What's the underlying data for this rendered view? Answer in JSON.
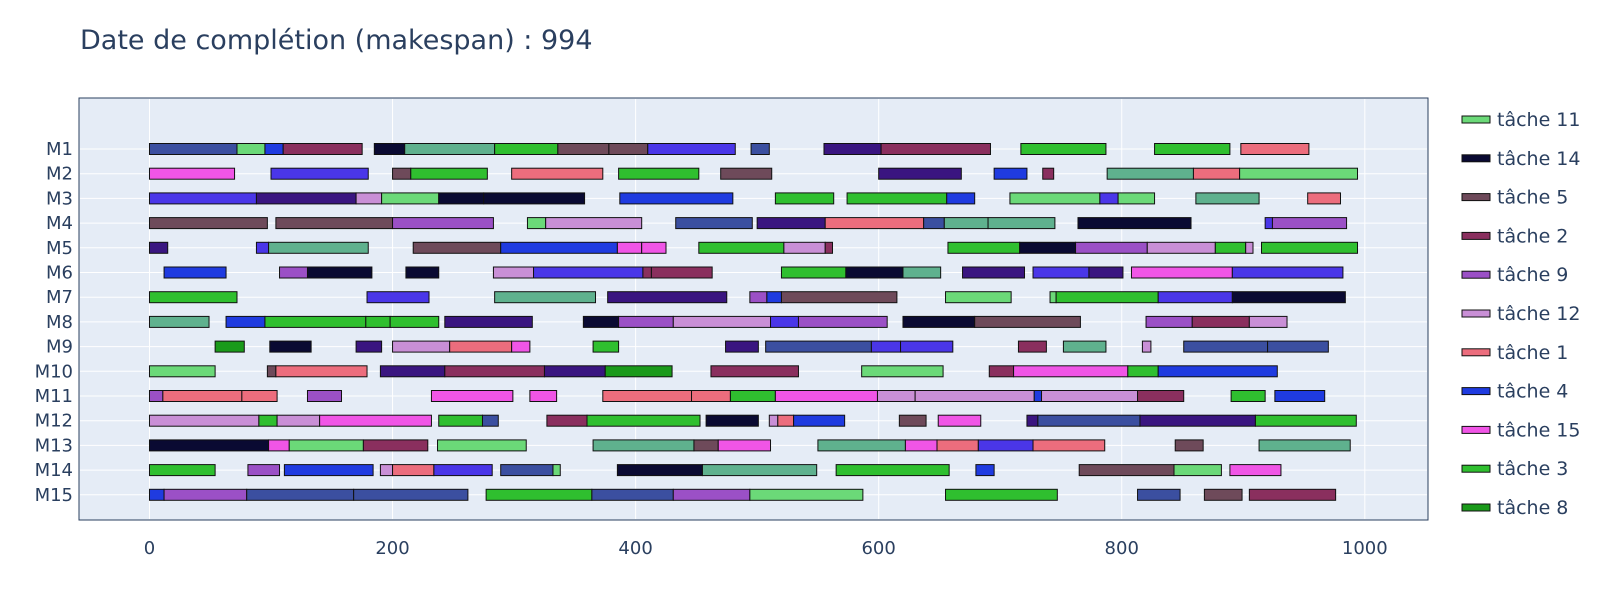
{
  "chart_data": {
    "type": "gantt",
    "title": "Date de complétion (makespan) : 994",
    "xlabel": "",
    "ylabel": "",
    "xlim": [
      -58,
      1052
    ],
    "x_ticks": [
      0,
      200,
      400,
      600,
      800,
      1000
    ],
    "grid": true,
    "legend_position": "right",
    "machines": [
      "M1",
      "M2",
      "M3",
      "M4",
      "M5",
      "M6",
      "M7",
      "M8",
      "M9",
      "M10",
      "M11",
      "M12",
      "M13",
      "M14",
      "M15"
    ],
    "legend": [
      {
        "name": "tâche 11",
        "color": "#6bd978"
      },
      {
        "name": "tâche 14",
        "color": "#0a0a32"
      },
      {
        "name": "tâche 5",
        "color": "#6e4a5a"
      },
      {
        "name": "tâche 2",
        "color": "#8a2f5e"
      },
      {
        "name": "tâche 9",
        "color": "#9b50c6"
      },
      {
        "name": "tâche 12",
        "color": "#c98fd6"
      },
      {
        "name": "tâche 1",
        "color": "#ec6d7d"
      },
      {
        "name": "tâche 4",
        "color": "#1f3be0"
      },
      {
        "name": "tâche 15",
        "color": "#f055e6"
      },
      {
        "name": "tâche 3",
        "color": "#2fbf2f"
      },
      {
        "name": "tâche 8",
        "color": "#1a9a1a"
      }
    ],
    "task_colors": {
      "j1": "#ec6d7d",
      "j2": "#8a2f5e",
      "j3": "#2fbf2f",
      "j4": "#1f3be0",
      "j5": "#6e4a5a",
      "j6": "#5fb18e",
      "j7": "#3b4fa0",
      "j8": "#1a9a1a",
      "j9": "#9b50c6",
      "j10": "#3a1580",
      "j11": "#6bd978",
      "j12": "#c98fd6",
      "j13": "#4a36e8",
      "j14": "#0a0a32",
      "j15": "#f055e6"
    },
    "bars": [
      [
        [
          "j7",
          0,
          72
        ],
        [
          "j11",
          72,
          95
        ],
        [
          "j4",
          95,
          110
        ],
        [
          "j2",
          110,
          175
        ],
        [
          "j14",
          185,
          210
        ],
        [
          "j6",
          210,
          284
        ],
        [
          "j3",
          284,
          336
        ],
        [
          "j5",
          336,
          378
        ],
        [
          "j5",
          378,
          410
        ],
        [
          "j13",
          410,
          482
        ],
        [
          "j7",
          495,
          510
        ],
        [
          "j10",
          555,
          602
        ],
        [
          "j2",
          602,
          692
        ],
        [
          "j3",
          717,
          787
        ],
        [
          "j3",
          827,
          889
        ],
        [
          "j1",
          898,
          954
        ]
      ],
      [
        [
          "j15",
          0,
          70
        ],
        [
          "j13",
          100,
          180
        ],
        [
          "j5",
          200,
          215
        ],
        [
          "j3",
          215,
          278
        ],
        [
          "j1",
          298,
          373
        ],
        [
          "j3",
          386,
          452
        ],
        [
          "j5",
          470,
          512
        ],
        [
          "j10",
          600,
          668
        ],
        [
          "j4",
          695,
          722
        ],
        [
          "j2",
          735,
          744
        ],
        [
          "j6",
          788,
          859
        ],
        [
          "j1",
          859,
          897
        ],
        [
          "j11",
          897,
          994
        ]
      ],
      [
        [
          "j13",
          0,
          88
        ],
        [
          "j10",
          88,
          170
        ],
        [
          "j12",
          170,
          191
        ],
        [
          "j11",
          191,
          238
        ],
        [
          "j14",
          238,
          275
        ],
        [
          "j14",
          275,
          358
        ],
        [
          "j4",
          387,
          480
        ],
        [
          "j3",
          515,
          563
        ],
        [
          "j3",
          574,
          656
        ],
        [
          "j4",
          656,
          679
        ],
        [
          "j11",
          708,
          782
        ],
        [
          "j13",
          782,
          797
        ],
        [
          "j11",
          797,
          827
        ],
        [
          "j6",
          861,
          913
        ],
        [
          "j1",
          953,
          980
        ]
      ],
      [
        [
          "j5",
          0,
          97
        ],
        [
          "j5",
          104,
          200
        ],
        [
          "j9",
          200,
          283
        ],
        [
          "j11",
          311,
          326
        ],
        [
          "j12",
          326,
          405
        ],
        [
          "j7",
          433,
          496
        ],
        [
          "j10",
          500,
          556
        ],
        [
          "j1",
          556,
          637
        ],
        [
          "j7",
          637,
          654
        ],
        [
          "j6",
          654,
          690
        ],
        [
          "j6",
          690,
          745
        ],
        [
          "j14",
          764,
          857
        ],
        [
          "j13",
          918,
          924
        ],
        [
          "j9",
          924,
          985
        ]
      ],
      [
        [
          "j10",
          0,
          15
        ],
        [
          "j13",
          88,
          98
        ],
        [
          "j6",
          98,
          180
        ],
        [
          "j5",
          217,
          289
        ],
        [
          "j4",
          289,
          385
        ],
        [
          "j15",
          385,
          405
        ],
        [
          "j15",
          405,
          425
        ],
        [
          "j3",
          452,
          522
        ],
        [
          "j12",
          522,
          556
        ],
        [
          "j2",
          556,
          562
        ],
        [
          "j3",
          657,
          716
        ],
        [
          "j14",
          716,
          762
        ],
        [
          "j9",
          762,
          821
        ],
        [
          "j12",
          821,
          877
        ],
        [
          "j3",
          877,
          902
        ],
        [
          "j12",
          902,
          908
        ],
        [
          "j3",
          915,
          994
        ]
      ],
      [
        [
          "j4",
          12,
          63
        ],
        [
          "j9",
          107,
          130
        ],
        [
          "j14",
          130,
          183
        ],
        [
          "j14",
          211,
          238
        ],
        [
          "j12",
          283,
          316
        ],
        [
          "j13",
          316,
          406
        ],
        [
          "j2",
          406,
          413
        ],
        [
          "j2",
          413,
          463
        ],
        [
          "j3",
          520,
          573
        ],
        [
          "j14",
          573,
          620
        ],
        [
          "j6",
          620,
          651
        ],
        [
          "j10",
          669,
          720
        ],
        [
          "j13",
          727,
          773
        ],
        [
          "j10",
          773,
          801
        ],
        [
          "j15",
          808,
          891
        ],
        [
          "j13",
          891,
          982
        ]
      ],
      [
        [
          "j3",
          0,
          72
        ],
        [
          "j13",
          179,
          230
        ],
        [
          "j6",
          284,
          367
        ],
        [
          "j10",
          377,
          475
        ],
        [
          "j9",
          494,
          508
        ],
        [
          "j4",
          508,
          520
        ],
        [
          "j5",
          520,
          615
        ],
        [
          "j11",
          655,
          709
        ],
        [
          "j11",
          741,
          746
        ],
        [
          "j3",
          746,
          830
        ],
        [
          "j13",
          830,
          891
        ],
        [
          "j14",
          891,
          984
        ]
      ],
      [
        [
          "j6",
          0,
          49
        ],
        [
          "j4",
          63,
          95
        ],
        [
          "j3",
          95,
          178
        ],
        [
          "j3",
          178,
          198
        ],
        [
          "j3",
          198,
          238
        ],
        [
          "j10",
          243,
          315
        ],
        [
          "j14",
          357,
          386
        ],
        [
          "j9",
          386,
          431
        ],
        [
          "j12",
          431,
          511
        ],
        [
          "j13",
          511,
          534
        ],
        [
          "j9",
          534,
          607
        ],
        [
          "j14",
          620,
          679
        ],
        [
          "j5",
          679,
          766
        ],
        [
          "j9",
          820,
          858
        ],
        [
          "j2",
          858,
          905
        ],
        [
          "j12",
          905,
          936
        ]
      ],
      [
        [
          "j8",
          54,
          78
        ],
        [
          "j14",
          99,
          133
        ],
        [
          "j10",
          170,
          191
        ],
        [
          "j12",
          200,
          247
        ],
        [
          "j1",
          247,
          298
        ],
        [
          "j15",
          298,
          313
        ],
        [
          "j3",
          365,
          386
        ],
        [
          "j10",
          474,
          501
        ],
        [
          "j7",
          507,
          594
        ],
        [
          "j13",
          594,
          618
        ],
        [
          "j13",
          618,
          661
        ],
        [
          "j2",
          715,
          738
        ],
        [
          "j6",
          752,
          787
        ],
        [
          "j12",
          817,
          824
        ],
        [
          "j7",
          851,
          920
        ],
        [
          "j7",
          920,
          970
        ]
      ],
      [
        [
          "j11",
          0,
          54
        ],
        [
          "j5",
          97,
          104
        ],
        [
          "j1",
          104,
          179
        ],
        [
          "j10",
          190,
          243
        ],
        [
          "j2",
          243,
          325
        ],
        [
          "j10",
          325,
          375
        ],
        [
          "j8",
          375,
          430
        ],
        [
          "j2",
          462,
          534
        ],
        [
          "j11",
          586,
          653
        ],
        [
          "j2",
          691,
          711
        ],
        [
          "j15",
          711,
          805
        ],
        [
          "j3",
          805,
          830
        ],
        [
          "j4",
          830,
          928
        ]
      ],
      [
        [
          "j9",
          0,
          11
        ],
        [
          "j1",
          11,
          76
        ],
        [
          "j1",
          76,
          105
        ],
        [
          "j9",
          130,
          158
        ],
        [
          "j15",
          232,
          299
        ],
        [
          "j15",
          313,
          335
        ],
        [
          "j1",
          373,
          446
        ],
        [
          "j1",
          446,
          478
        ],
        [
          "j3",
          478,
          515
        ],
        [
          "j15",
          515,
          599
        ],
        [
          "j12",
          599,
          630
        ],
        [
          "j12",
          630,
          728
        ],
        [
          "j4",
          728,
          734
        ],
        [
          "j12",
          734,
          813
        ],
        [
          "j2",
          813,
          851
        ],
        [
          "j3",
          890,
          918
        ],
        [
          "j4",
          926,
          967
        ]
      ],
      [
        [
          "j12",
          0,
          90
        ],
        [
          "j3",
          90,
          105
        ],
        [
          "j12",
          105,
          140
        ],
        [
          "j15",
          140,
          232
        ],
        [
          "j3",
          238,
          274
        ],
        [
          "j7",
          274,
          287
        ],
        [
          "j2",
          327,
          360
        ],
        [
          "j3",
          360,
          453
        ],
        [
          "j14",
          458,
          501
        ],
        [
          "j12",
          510,
          517
        ],
        [
          "j1",
          517,
          530
        ],
        [
          "j4",
          530,
          572
        ],
        [
          "j5",
          617,
          639
        ],
        [
          "j15",
          649,
          684
        ],
        [
          "j10",
          722,
          731
        ],
        [
          "j7",
          731,
          815
        ],
        [
          "j10",
          815,
          910
        ],
        [
          "j3",
          910,
          993
        ]
      ],
      [
        [
          "j14",
          0,
          98
        ],
        [
          "j15",
          98,
          115
        ],
        [
          "j11",
          115,
          176
        ],
        [
          "j2",
          176,
          229
        ],
        [
          "j11",
          237,
          310
        ],
        [
          "j6",
          365,
          448
        ],
        [
          "j5",
          448,
          468
        ],
        [
          "j15",
          468,
          511
        ],
        [
          "j6",
          550,
          622
        ],
        [
          "j15",
          622,
          648
        ],
        [
          "j1",
          648,
          682
        ],
        [
          "j13",
          682,
          727
        ],
        [
          "j1",
          727,
          786
        ],
        [
          "j5",
          844,
          867
        ],
        [
          "j6",
          913,
          988
        ]
      ],
      [
        [
          "j3",
          0,
          54
        ],
        [
          "j9",
          81,
          107
        ],
        [
          "j4",
          111,
          184
        ],
        [
          "j12",
          190,
          200
        ],
        [
          "j1",
          200,
          234
        ],
        [
          "j13",
          234,
          282
        ],
        [
          "j7",
          289,
          332
        ],
        [
          "j11",
          332,
          338
        ],
        [
          "j14",
          385,
          455
        ],
        [
          "j6",
          455,
          549
        ],
        [
          "j3",
          565,
          658
        ],
        [
          "j4",
          680,
          695
        ],
        [
          "j5",
          765,
          843
        ],
        [
          "j11",
          843,
          882
        ],
        [
          "j15",
          889,
          931
        ]
      ],
      [
        [
          "j4",
          0,
          12
        ],
        [
          "j9",
          12,
          80
        ],
        [
          "j7",
          80,
          168
        ],
        [
          "j7",
          168,
          262
        ],
        [
          "j3",
          277,
          364
        ],
        [
          "j7",
          364,
          431
        ],
        [
          "j9",
          431,
          494
        ],
        [
          "j11",
          494,
          587
        ],
        [
          "j3",
          655,
          747
        ],
        [
          "j7",
          813,
          848
        ],
        [
          "j5",
          868,
          899
        ],
        [
          "j2",
          905,
          976
        ]
      ]
    ]
  }
}
